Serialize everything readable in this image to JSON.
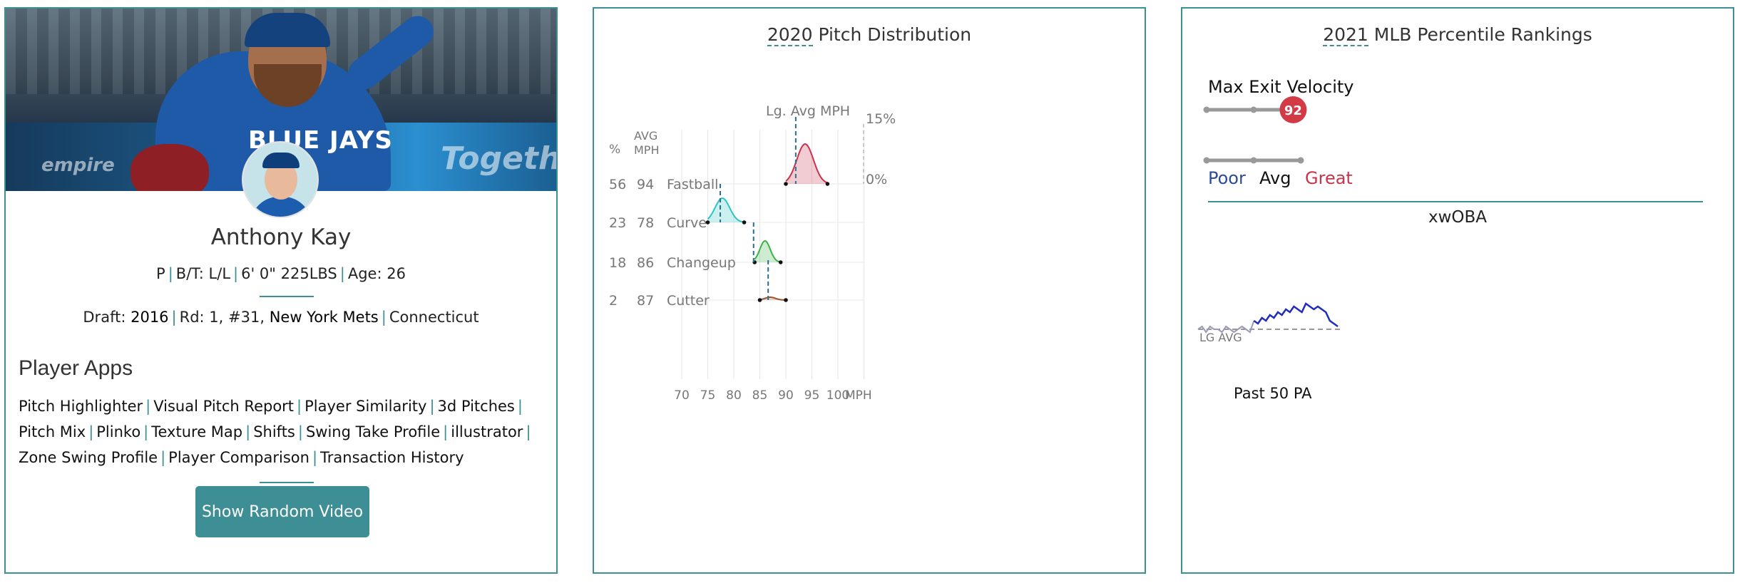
{
  "player": {
    "name": "Anthony Kay",
    "bio": {
      "position": "P",
      "bats_throws": "B/T: L/L",
      "size": "6' 0\" 225LBS",
      "age": "Age: 26"
    },
    "draft": {
      "label": "Draft:",
      "year": "2016",
      "round_pick": "Rd: 1, #31,",
      "team": "New York Mets",
      "school": "Connecticut"
    },
    "hero_board_text": [
      "Togeth",
      "empire"
    ],
    "jersey_text": "BLUE JAYS"
  },
  "apps": {
    "title": "Player Apps",
    "items": [
      "Pitch Highlighter",
      "Visual Pitch Report",
      "Player Similarity",
      "3d Pitches",
      "Pitch Mix",
      "Plinko",
      "Texture Map",
      "Shifts",
      "Swing Take Profile",
      "illustrator",
      "Zone Swing Profile",
      "Player Comparison",
      "Transaction History"
    ],
    "random_video_label": "Show Random Video"
  },
  "pitch_distribution": {
    "year": "2020",
    "title_rest": "Pitch Distribution",
    "header_pct": "%",
    "header_avg_line1": "AVG",
    "header_avg_line2": "MPH",
    "lg_avg_label": "Lg. Avg MPH",
    "scale_top": "15%",
    "scale_bottom": "0%",
    "x_unit": "MPH"
  },
  "chart_data": [
    {
      "type": "area",
      "title": "2020 Pitch Distribution",
      "xlabel": "MPH",
      "xlim": [
        68,
        106
      ],
      "x_ticks": [
        70,
        75,
        80,
        85,
        90,
        95,
        100
      ],
      "series": [
        {
          "name": "Fastball",
          "pct": 56,
          "avg_mph": 94,
          "lg_avg_mph": 91.9,
          "range": [
            90,
            98
          ],
          "peak_mph": 93.7,
          "color": "#c9344a"
        },
        {
          "name": "Curve",
          "pct": 23,
          "avg_mph": 78,
          "lg_avg_mph": 77.4,
          "range": [
            75,
            82
          ],
          "peak_mph": 77.8,
          "color": "#2bc6c4"
        },
        {
          "name": "Changeup",
          "pct": 18,
          "avg_mph": 86,
          "lg_avg_mph": 83.8,
          "range": [
            84,
            89
          ],
          "peak_mph": 86,
          "color": "#3bb34a"
        },
        {
          "name": "Cutter",
          "pct": 2,
          "avg_mph": 87,
          "lg_avg_mph": 86.6,
          "range": [
            85,
            90
          ],
          "peak_mph": 87,
          "color": "#a0522d"
        }
      ]
    },
    {
      "type": "line",
      "title": "xwOBA",
      "xlabel": "Past 50 PA",
      "baseline_label": "LG AVG",
      "series": [
        {
          "name": "player",
          "values": [
            0.3,
            0.31,
            0.29,
            0.31,
            0.3,
            0.3,
            0.29,
            0.31,
            0.3,
            0.29,
            0.3,
            0.31,
            0.3,
            0.29,
            0.33,
            0.32,
            0.34,
            0.33,
            0.35,
            0.34,
            0.36,
            0.35,
            0.37,
            0.36,
            0.38,
            0.37,
            0.36,
            0.39,
            0.38,
            0.37,
            0.38,
            0.37,
            0.36,
            0.33,
            0.32,
            0.31
          ],
          "color": "#1f2dbd"
        },
        {
          "name": "LG AVG",
          "values": [
            0.3
          ],
          "color": "#777777"
        }
      ]
    }
  ],
  "percentile": {
    "year": "2021",
    "title_rest": "MLB Percentile Rankings",
    "metric_label": "Max Exit Velocity",
    "metric_value": "92",
    "metric_percentile": 92,
    "legend": {
      "poor": "Poor",
      "avg": "Avg",
      "great": "Great"
    },
    "colors": {
      "poor": "#2a4a9a",
      "great": "#c9344a",
      "bubble": "#d23b45"
    },
    "xwoba_title": "xwOBA",
    "baseline_label": "LG AVG",
    "past_pa": "Past 50 PA"
  },
  "colors": {
    "accent": "#3c8f95",
    "button": "#3d8f95"
  }
}
